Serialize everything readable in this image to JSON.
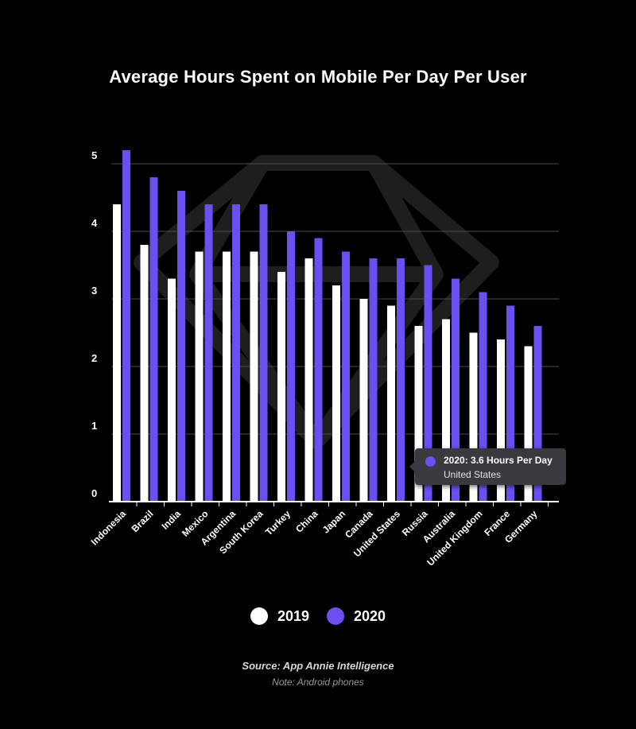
{
  "colors": {
    "background": "#000000",
    "series_2019": "#ffffff",
    "series_2020": "#6b4ff0",
    "grid": "#4a4a4a",
    "axis": "#ffffff"
  },
  "chart_data": {
    "type": "bar",
    "title": "Average Hours Spent on Mobile Per Day Per User",
    "xlabel": "",
    "ylabel": "",
    "ylim": [
      0,
      5
    ],
    "yticks": [
      "0",
      "1",
      "2",
      "3",
      "4",
      "5"
    ],
    "grid": true,
    "categories": [
      "Indonesia",
      "Brazil",
      "India",
      "Mexico",
      "Argentina",
      "South Korea",
      "Turkey",
      "China",
      "Japan",
      "Canada",
      "United States",
      "Russia",
      "Australia",
      "United Kingdom",
      "France",
      "Germany"
    ],
    "series": [
      {
        "name": "2019",
        "values": [
          4.4,
          3.8,
          3.3,
          3.7,
          3.7,
          3.7,
          3.4,
          3.6,
          3.2,
          3.0,
          2.9,
          2.6,
          2.7,
          2.5,
          2.4,
          2.3
        ]
      },
      {
        "name": "2020",
        "values": [
          5.2,
          4.8,
          4.6,
          4.4,
          4.4,
          4.4,
          4.0,
          3.9,
          3.7,
          3.6,
          3.6,
          3.5,
          3.3,
          3.1,
          2.9,
          2.6
        ]
      }
    ],
    "legend_position": "bottom",
    "tooltip": {
      "title": "2020: 3.6 Hours Per Day",
      "subtitle": "United States"
    }
  },
  "legend": {
    "item_2019": "2019",
    "item_2020": "2020"
  },
  "footer": {
    "source": "Source: App Annie Intelligence",
    "note": "Note: Android phones"
  }
}
